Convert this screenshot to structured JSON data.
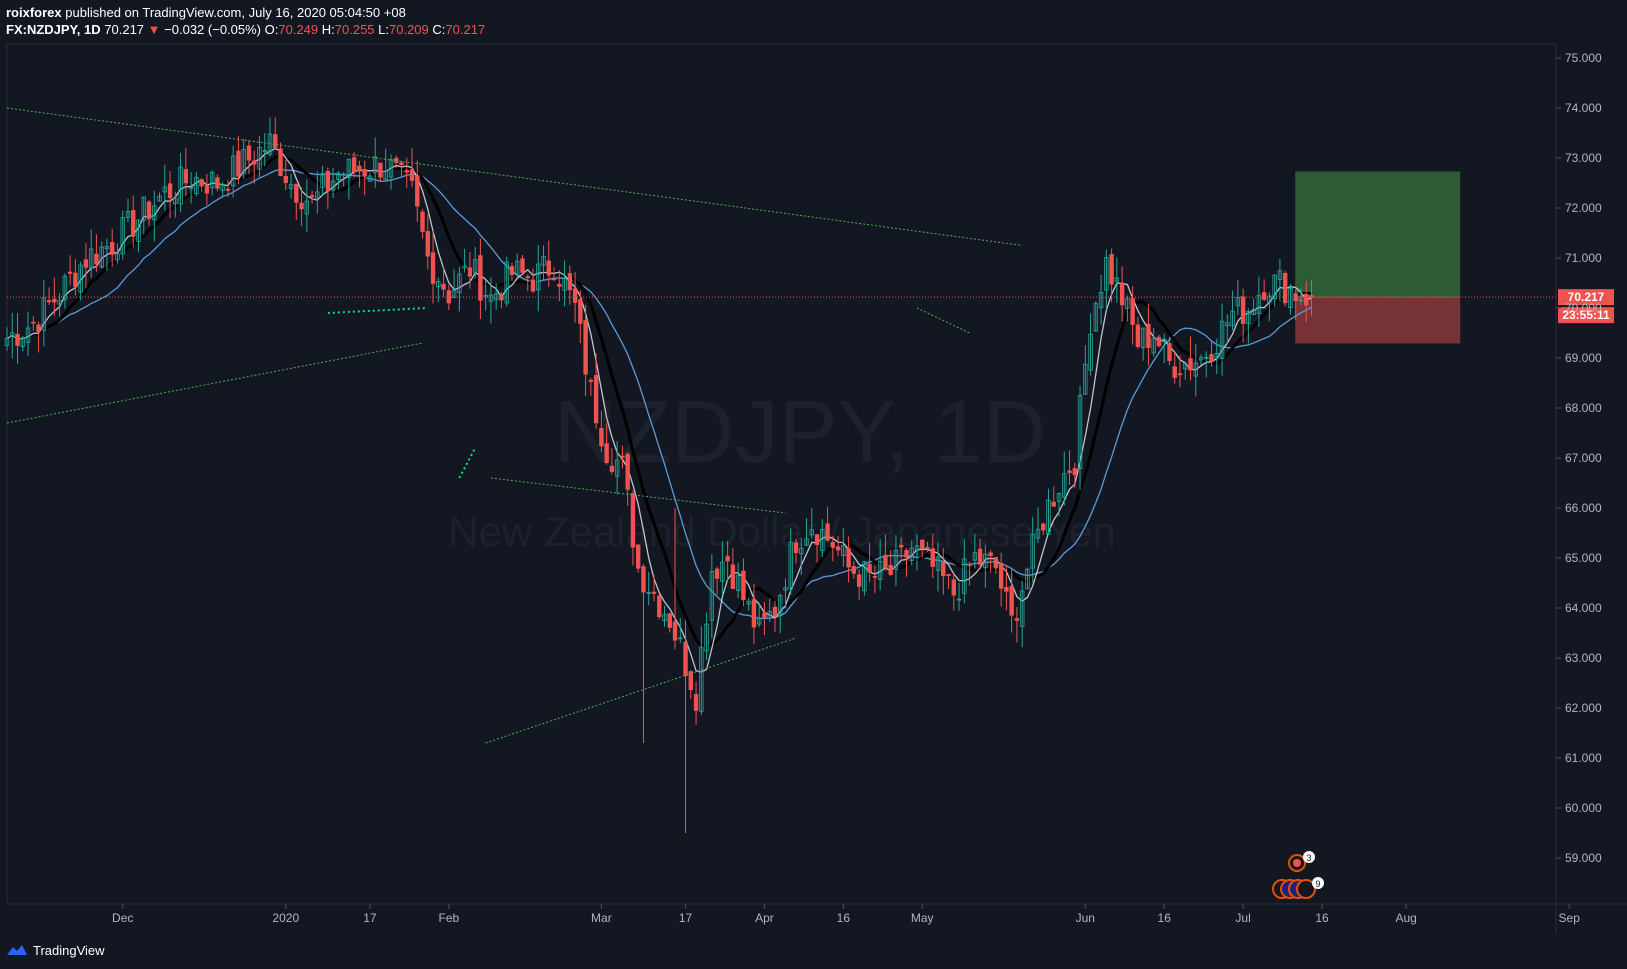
{
  "header": {
    "publisher": "roixforex",
    "published_text": "published on TradingView.com, July 16, 2020 05:04:50 +08",
    "symbol": "FX:NZDJPY, 1D",
    "last": "70.217",
    "change": "−0.032 (−0.05%)",
    "o_label": "O:",
    "o": "70.249",
    "h_label": "H:",
    "h": "70.255",
    "l_label": "L:",
    "l": "70.209",
    "c_label": "C:",
    "c": "70.217"
  },
  "watermark": {
    "symbol": "NZDJPY, 1D",
    "description": "New Zealand Dollar / Japanese Yen"
  },
  "price_scale": {
    "ticks": [
      "75.000",
      "74.000",
      "73.000",
      "72.000",
      "71.000",
      "70.000",
      "69.000",
      "68.000",
      "67.000",
      "66.000",
      "65.000",
      "64.000",
      "63.000",
      "62.000",
      "61.000",
      "60.000",
      "59.000"
    ],
    "last_price_label": "70.217",
    "countdown_label": "23:55:11"
  },
  "time_scale": {
    "ticks": [
      {
        "label": "Dec",
        "day": 22
      },
      {
        "label": "2020",
        "day": 53
      },
      {
        "label": "17",
        "day": 69
      },
      {
        "label": "Feb",
        "day": 84
      },
      {
        "label": "Mar",
        "day": 113
      },
      {
        "label": "17",
        "day": 129
      },
      {
        "label": "Apr",
        "day": 144
      },
      {
        "label": "16",
        "day": 159
      },
      {
        "label": "May",
        "day": 174
      },
      {
        "label": "Jun",
        "day": 205
      },
      {
        "label": "16",
        "day": 220
      },
      {
        "label": "Jul",
        "day": 235
      },
      {
        "label": "16",
        "day": 250
      },
      {
        "label": "Aug",
        "day": 266
      },
      {
        "label": "Sep",
        "day": 297
      }
    ]
  },
  "chart_data": {
    "type": "candlestick",
    "symbol": "NZDJPY",
    "interval": "1D",
    "y_range": [
      58.2,
      75.3
    ],
    "key_points": [
      {
        "day": 0,
        "price": 69.4
      },
      {
        "day": 5,
        "price": 69.7
      },
      {
        "day": 10,
        "price": 70.3
      },
      {
        "day": 15,
        "price": 71.0
      },
      {
        "day": 20,
        "price": 71.3
      },
      {
        "day": 25,
        "price": 71.8
      },
      {
        "day": 30,
        "price": 72.3
      },
      {
        "day": 35,
        "price": 72.6
      },
      {
        "day": 40,
        "price": 72.5
      },
      {
        "day": 45,
        "price": 72.9
      },
      {
        "day": 50,
        "price": 73.3
      },
      {
        "day": 54,
        "price": 72.5
      },
      {
        "day": 58,
        "price": 72.1
      },
      {
        "day": 63,
        "price": 72.7
      },
      {
        "day": 68,
        "price": 72.8
      },
      {
        "day": 72,
        "price": 72.9
      },
      {
        "day": 77,
        "price": 72.3
      },
      {
        "day": 80,
        "price": 71.0
      },
      {
        "day": 84,
        "price": 70.3
      },
      {
        "day": 88,
        "price": 70.8
      },
      {
        "day": 92,
        "price": 70.2
      },
      {
        "day": 96,
        "price": 70.7
      },
      {
        "day": 100,
        "price": 70.6
      },
      {
        "day": 104,
        "price": 70.9
      },
      {
        "day": 108,
        "price": 70.0
      },
      {
        "day": 111,
        "price": 68.3
      },
      {
        "day": 114,
        "price": 67.2
      },
      {
        "day": 117,
        "price": 66.8
      },
      {
        "day": 120,
        "price": 64.8
      },
      {
        "day": 123,
        "price": 64.3
      },
      {
        "day": 126,
        "price": 63.8
      },
      {
        "day": 129,
        "price": 62.9
      },
      {
        "day": 131,
        "price": 62.3
      },
      {
        "day": 134,
        "price": 64.8
      },
      {
        "day": 137,
        "price": 65.0
      },
      {
        "day": 140,
        "price": 64.2
      },
      {
        "day": 143,
        "price": 63.5
      },
      {
        "day": 146,
        "price": 64.0
      },
      {
        "day": 150,
        "price": 65.4
      },
      {
        "day": 153,
        "price": 65.7
      },
      {
        "day": 157,
        "price": 65.3
      },
      {
        "day": 160,
        "price": 64.8
      },
      {
        "day": 164,
        "price": 64.6
      },
      {
        "day": 168,
        "price": 64.7
      },
      {
        "day": 172,
        "price": 65.2
      },
      {
        "day": 176,
        "price": 64.8
      },
      {
        "day": 180,
        "price": 64.3
      },
      {
        "day": 184,
        "price": 65.0
      },
      {
        "day": 188,
        "price": 64.8
      },
      {
        "day": 191,
        "price": 63.7
      },
      {
        "day": 194,
        "price": 64.8
      },
      {
        "day": 197,
        "price": 65.8
      },
      {
        "day": 200,
        "price": 66.5
      },
      {
        "day": 203,
        "price": 67.0
      },
      {
        "day": 206,
        "price": 69.8
      },
      {
        "day": 209,
        "price": 70.9
      },
      {
        "day": 212,
        "price": 70.2
      },
      {
        "day": 215,
        "price": 69.3
      },
      {
        "day": 218,
        "price": 69.5
      },
      {
        "day": 221,
        "price": 68.9
      },
      {
        "day": 224,
        "price": 68.9
      },
      {
        "day": 227,
        "price": 69.0
      },
      {
        "day": 230,
        "price": 69.4
      },
      {
        "day": 233,
        "price": 69.9
      },
      {
        "day": 236,
        "price": 70.0
      },
      {
        "day": 239,
        "price": 70.5
      },
      {
        "day": 242,
        "price": 70.5
      },
      {
        "day": 245,
        "price": 70.3
      },
      {
        "day": 248,
        "price": 70.217
      }
    ],
    "spikes": [
      {
        "day": 121,
        "low": 61.3
      },
      {
        "day": 129,
        "low": 59.5
      },
      {
        "day": 127,
        "high": 66.0
      }
    ],
    "moving_averages": [
      {
        "name": "fast",
        "color": "#e0e3eb",
        "period": 5
      },
      {
        "name": "mid",
        "color": "#000000",
        "period": 10
      },
      {
        "name": "slow",
        "color": "#5b9bd5",
        "period": 20
      }
    ],
    "last_price": 70.217,
    "trendlines": [
      {
        "from": {
          "day": 0,
          "price": 74.0
        },
        "to": {
          "day": 193,
          "price": 71.25
        },
        "color": "#4caf50"
      },
      {
        "from": {
          "day": 0,
          "price": 67.7
        },
        "to": {
          "day": 79,
          "price": 69.3
        },
        "color": "#4caf50"
      },
      {
        "from": {
          "day": 91,
          "price": 61.3
        },
        "to": {
          "day": 150,
          "price": 63.4
        },
        "color": "#4caf50"
      },
      {
        "from": {
          "day": 92,
          "price": 66.6
        },
        "to": {
          "day": 148,
          "price": 65.9
        },
        "color": "#4caf50"
      },
      {
        "from": {
          "day": 61,
          "price": 69.9
        },
        "to": {
          "day": 80,
          "price": 70.0
        },
        "color": "#00e676",
        "dotted": true
      },
      {
        "from": {
          "day": 86,
          "price": 66.6
        },
        "to": {
          "day": 89,
          "price": 67.2
        },
        "color": "#00e676",
        "dotted": true
      },
      {
        "from": {
          "day": 173,
          "price": 70.0
        },
        "to": {
          "day": 183,
          "price": 69.5
        },
        "color": "#4caf50"
      }
    ],
    "position": {
      "type": "long",
      "entry": 70.217,
      "target": 72.72,
      "stop": 69.3,
      "from_day": 199,
      "to_day": 225
    }
  },
  "footer": {
    "brand": "TradingView"
  },
  "colors": {
    "background": "#131722",
    "up": "#26a69a",
    "down": "#ef5350",
    "grid": "#1e222d",
    "accent": "#2962ff"
  }
}
